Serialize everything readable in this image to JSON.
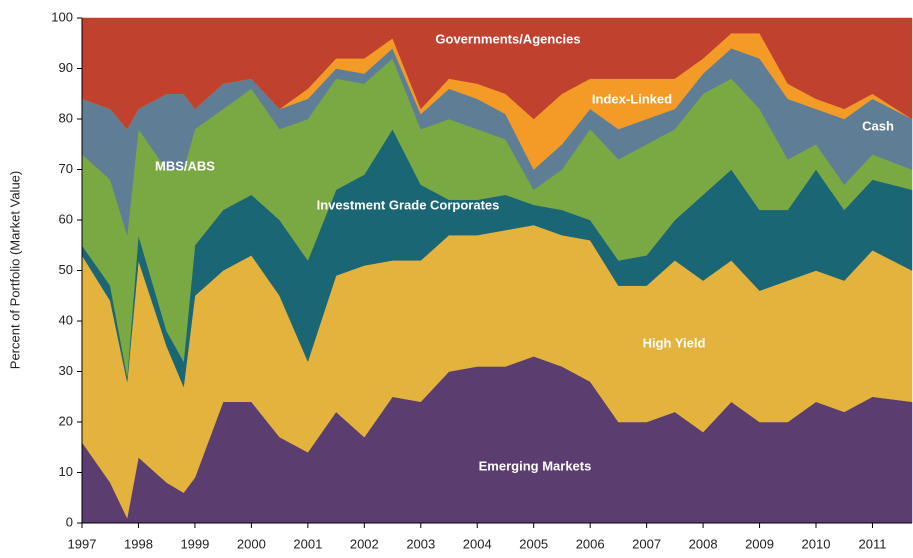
{
  "chart_data": {
    "type": "stacked_area",
    "y_label": "Percent of Portfolio (Market Value)",
    "x": [
      1997.0,
      1997.5,
      1997.8,
      1998.0,
      1998.5,
      1998.8,
      1999.0,
      1999.5,
      2000.0,
      2000.5,
      2001.0,
      2001.5,
      2002.0,
      2002.5,
      2003.0,
      2003.5,
      2004.0,
      2004.5,
      2005.0,
      2005.5,
      2006.0,
      2006.5,
      2007.0,
      2007.5,
      2008.0,
      2008.5,
      2009.0,
      2009.5,
      2010.0,
      2010.5,
      2011.0,
      2011.7
    ],
    "series": [
      {
        "name": "Emerging Markets",
        "color": "#5b3e6f",
        "values": [
          16,
          8,
          1,
          13,
          8,
          6,
          9,
          24,
          24,
          17,
          14,
          22,
          17,
          25,
          24,
          30,
          31,
          31,
          33,
          31,
          28,
          20,
          20,
          22,
          18,
          24,
          20,
          20,
          24,
          22,
          25,
          24
        ]
      },
      {
        "name": "High Yield",
        "color": "#e4b33d",
        "values": [
          37,
          36,
          27,
          39,
          27,
          21,
          36,
          26,
          29,
          28,
          18,
          27,
          34,
          27,
          28,
          27,
          26,
          27,
          26,
          26,
          28,
          27,
          27,
          30,
          30,
          28,
          26,
          28,
          26,
          26,
          29,
          26
        ]
      },
      {
        "name": "Investment Grade Corporates",
        "color": "#1b6675",
        "values": [
          2,
          3,
          1,
          5,
          3,
          5,
          10,
          12,
          12,
          15,
          20,
          17,
          18,
          26,
          15,
          7,
          7,
          7,
          4,
          5,
          4,
          5,
          6,
          8,
          17,
          18,
          16,
          14,
          20,
          14,
          14,
          16
        ]
      },
      {
        "name": "MBS/ABS",
        "color": "#7aa843",
        "values": [
          18,
          21,
          28,
          21,
          32,
          38,
          23,
          20,
          21,
          18,
          28,
          22,
          18,
          14,
          11,
          16,
          14,
          11,
          3,
          8,
          18,
          20,
          22,
          18,
          20,
          18,
          20,
          10,
          5,
          5,
          5,
          4
        ]
      },
      {
        "name": "Cash",
        "color": "#5f7e95",
        "values": [
          11,
          14,
          21,
          4,
          15,
          15,
          4,
          5,
          2,
          4,
          4,
          2,
          2,
          2,
          3,
          6,
          6,
          5,
          4,
          5,
          4,
          6,
          5,
          4,
          4,
          6,
          10,
          12,
          7,
          13,
          11,
          10
        ]
      },
      {
        "name": "Index-Linked",
        "color": "#f39b26",
        "values": [
          0,
          0,
          0,
          0,
          0,
          0,
          0,
          0,
          0,
          0,
          2,
          2,
          3,
          2,
          1,
          2,
          3,
          4,
          10,
          10,
          6,
          10,
          8,
          6,
          3,
          3,
          5,
          3,
          2,
          2,
          1,
          0
        ]
      },
      {
        "name": "Governments/Agencies",
        "color": "#c1412f",
        "values": [
          16,
          18,
          22,
          18,
          15,
          15,
          18,
          13,
          12,
          18,
          14,
          8,
          8,
          4,
          18,
          12,
          13,
          15,
          20,
          15,
          12,
          12,
          12,
          12,
          8,
          3,
          3,
          13,
          16,
          18,
          15,
          20
        ]
      }
    ],
    "xlim": [
      1997,
      2011.7
    ],
    "xticks": [
      1997,
      1998,
      1999,
      2000,
      2001,
      2002,
      2003,
      2004,
      2005,
      2006,
      2007,
      2008,
      2009,
      2010,
      2011
    ],
    "ylim": [
      0,
      100
    ],
    "yticks": [
      0,
      10,
      20,
      30,
      40,
      50,
      60,
      70,
      80,
      90,
      100
    ]
  }
}
